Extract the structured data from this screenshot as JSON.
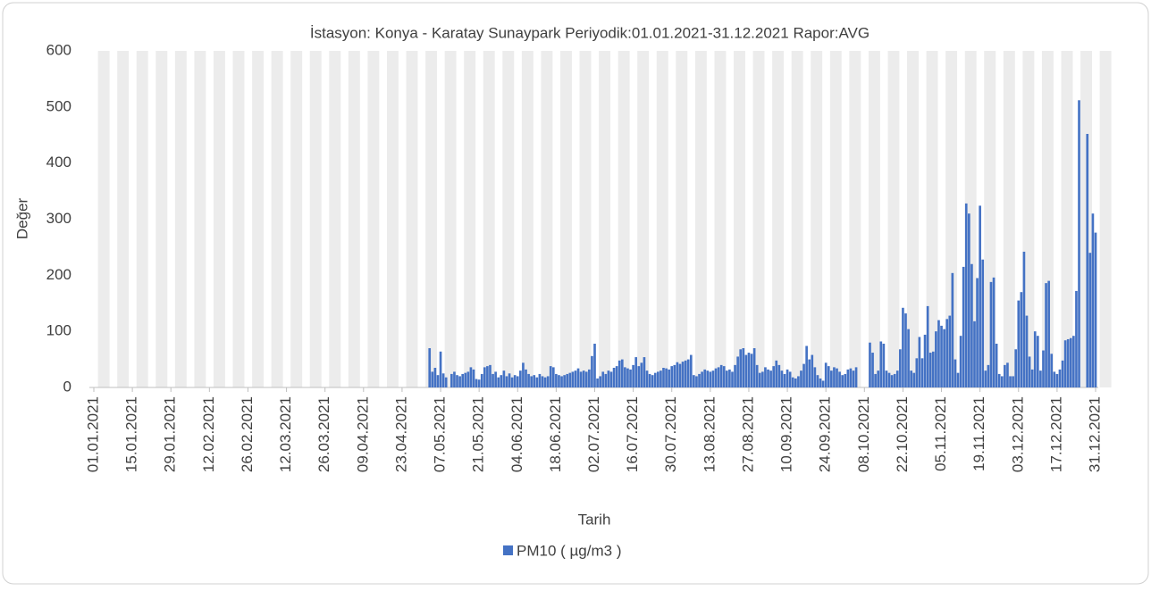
{
  "chart_data": {
    "type": "bar",
    "title": "İstasyon: Konya - Karatay Sunaypark  Periyodik:01.01.2021-31.12.2021 Rapor:AVG",
    "x_label": "Tarih",
    "y_label": "Değer",
    "series": [
      {
        "name": "PM10 ( µg/m3 )",
        "color": "#4472c4",
        "x": [
          "03.05.2021",
          "04.05.2021",
          "05.05.2021",
          "06.05.2021",
          "07.05.2021",
          "08.05.2021",
          "09.05.2021",
          "10.05.2021",
          "11.05.2021",
          "12.05.2021",
          "13.05.2021",
          "14.05.2021",
          "15.05.2021",
          "16.05.2021",
          "17.05.2021",
          "18.05.2021",
          "19.05.2021",
          "20.05.2021",
          "21.05.2021",
          "22.05.2021",
          "23.05.2021",
          "24.05.2021",
          "25.05.2021",
          "26.05.2021",
          "27.05.2021",
          "28.05.2021",
          "29.05.2021",
          "30.05.2021",
          "31.05.2021",
          "01.06.2021",
          "02.06.2021",
          "03.06.2021",
          "04.06.2021",
          "05.06.2021",
          "06.06.2021",
          "07.06.2021",
          "08.06.2021",
          "09.06.2021",
          "10.06.2021",
          "11.06.2021",
          "12.06.2021",
          "13.06.2021",
          "14.06.2021",
          "15.06.2021",
          "16.06.2021",
          "17.06.2021",
          "18.06.2021",
          "19.06.2021",
          "20.06.2021",
          "21.06.2021",
          "22.06.2021",
          "23.06.2021",
          "24.06.2021",
          "25.06.2021",
          "26.06.2021",
          "27.06.2021",
          "28.06.2021",
          "29.06.2021",
          "30.06.2021",
          "01.07.2021",
          "02.07.2021",
          "03.07.2021",
          "04.07.2021",
          "05.07.2021",
          "06.07.2021",
          "07.07.2021",
          "08.07.2021",
          "09.07.2021",
          "10.07.2021",
          "11.07.2021",
          "12.07.2021",
          "13.07.2021",
          "14.07.2021",
          "15.07.2021",
          "16.07.2021",
          "17.07.2021",
          "18.07.2021",
          "19.07.2021",
          "20.07.2021",
          "21.07.2021",
          "22.07.2021",
          "23.07.2021",
          "24.07.2021",
          "25.07.2021",
          "26.07.2021",
          "27.07.2021",
          "28.07.2021",
          "29.07.2021",
          "30.07.2021",
          "31.07.2021",
          "01.08.2021",
          "02.08.2021",
          "03.08.2021",
          "04.08.2021",
          "05.08.2021",
          "06.08.2021",
          "07.08.2021",
          "08.08.2021",
          "09.08.2021",
          "10.08.2021",
          "11.08.2021",
          "12.08.2021",
          "13.08.2021",
          "14.08.2021",
          "15.08.2021",
          "16.08.2021",
          "17.08.2021",
          "18.08.2021",
          "19.08.2021",
          "20.08.2021",
          "21.08.2021",
          "22.08.2021",
          "23.08.2021",
          "24.08.2021",
          "25.08.2021",
          "26.08.2021",
          "27.08.2021",
          "28.08.2021",
          "29.08.2021",
          "30.08.2021",
          "31.08.2021",
          "01.09.2021",
          "02.09.2021",
          "03.09.2021",
          "04.09.2021",
          "05.09.2021",
          "06.09.2021",
          "07.09.2021",
          "08.09.2021",
          "09.09.2021",
          "10.09.2021",
          "11.09.2021",
          "12.09.2021",
          "13.09.2021",
          "14.09.2021",
          "15.09.2021",
          "16.09.2021",
          "17.09.2021",
          "18.09.2021",
          "19.09.2021",
          "20.09.2021",
          "21.09.2021",
          "22.09.2021",
          "23.09.2021",
          "24.09.2021",
          "25.09.2021",
          "26.09.2021",
          "27.09.2021",
          "28.09.2021",
          "29.09.2021",
          "30.09.2021",
          "01.10.2021",
          "02.10.2021",
          "03.10.2021",
          "04.10.2021",
          "05.10.2021",
          "06.10.2021",
          "07.10.2021",
          "08.10.2021",
          "09.10.2021",
          "10.10.2021",
          "11.10.2021",
          "12.10.2021",
          "13.10.2021",
          "14.10.2021",
          "15.10.2021",
          "16.10.2021",
          "17.10.2021",
          "18.10.2021",
          "19.10.2021",
          "20.10.2021",
          "21.10.2021",
          "22.10.2021",
          "23.10.2021",
          "24.10.2021",
          "25.10.2021",
          "26.10.2021",
          "27.10.2021",
          "28.10.2021",
          "29.10.2021",
          "30.10.2021",
          "31.10.2021",
          "01.11.2021",
          "02.11.2021",
          "03.11.2021",
          "04.11.2021",
          "05.11.2021",
          "06.11.2021",
          "07.11.2021",
          "08.11.2021",
          "09.11.2021",
          "10.11.2021",
          "11.11.2021",
          "12.11.2021",
          "13.11.2021",
          "14.11.2021",
          "15.11.2021",
          "16.11.2021",
          "17.11.2021",
          "18.11.2021",
          "19.11.2021",
          "20.11.2021",
          "21.11.2021",
          "22.11.2021",
          "23.11.2021",
          "24.11.2021",
          "25.11.2021",
          "26.11.2021",
          "27.11.2021",
          "28.11.2021",
          "29.11.2021",
          "30.11.2021",
          "01.12.2021",
          "02.12.2021",
          "03.12.2021",
          "04.12.2021",
          "05.12.2021",
          "06.12.2021",
          "07.12.2021",
          "08.12.2021",
          "09.12.2021",
          "10.12.2021",
          "11.12.2021",
          "12.12.2021",
          "13.12.2021",
          "14.12.2021",
          "15.12.2021",
          "16.12.2021",
          "17.12.2021",
          "18.12.2021",
          "19.12.2021",
          "20.12.2021",
          "21.12.2021",
          "22.12.2021",
          "23.12.2021",
          "24.12.2021",
          "25.12.2021",
          "26.12.2021",
          "27.12.2021",
          "28.12.2021",
          "29.12.2021",
          "30.12.2021",
          "31.12.2021"
        ],
        "values": [
          70,
          28,
          35,
          22,
          64,
          25,
          18,
          null,
          24,
          28,
          22,
          20,
          24,
          26,
          28,
          36,
          32,
          15,
          14,
          24,
          36,
          38,
          40,
          24,
          28,
          18,
          22,
          30,
          20,
          25,
          18,
          22,
          20,
          30,
          44,
          32,
          24,
          20,
          22,
          18,
          24,
          20,
          18,
          20,
          38,
          36,
          24,
          22,
          20,
          22,
          24,
          26,
          28,
          30,
          34,
          28,
          30,
          28,
          32,
          56,
          78,
          16,
          20,
          28,
          24,
          30,
          28,
          35,
          38,
          48,
          50,
          36,
          34,
          32,
          40,
          54,
          38,
          44,
          54,
          30,
          24,
          22,
          26,
          28,
          30,
          35,
          34,
          32,
          38,
          40,
          45,
          42,
          46,
          48,
          50,
          58,
          22,
          20,
          24,
          28,
          32,
          30,
          28,
          30,
          34,
          36,
          40,
          38,
          30,
          32,
          28,
          40,
          55,
          68,
          70,
          58,
          62,
          60,
          70,
          40,
          26,
          28,
          36,
          32,
          30,
          38,
          48,
          40,
          30,
          24,
          32,
          28,
          18,
          16,
          20,
          30,
          42,
          74,
          50,
          58,
          36,
          22,
          16,
          12,
          44,
          38,
          30,
          36,
          34,
          28,
          22,
          24,
          32,
          34,
          30,
          36,
          null,
          null,
          null,
          null,
          80,
          62,
          24,
          30,
          82,
          78,
          30,
          26,
          22,
          24,
          30,
          68,
          142,
          132,
          104,
          30,
          26,
          52,
          90,
          52,
          94,
          145,
          62,
          64,
          100,
          120,
          110,
          104,
          122,
          128,
          204,
          50,
          26,
          92,
          215,
          328,
          310,
          220,
          118,
          195,
          324,
          228,
          30,
          40,
          188,
          196,
          78,
          24,
          20,
          40,
          44,
          20,
          20,
          68,
          155,
          170,
          242,
          128,
          55,
          32,
          100,
          92,
          30,
          66,
          186,
          190,
          60,
          28,
          24,
          32,
          48,
          84,
          86,
          88,
          92,
          172,
          512,
          null,
          null,
          452,
          240,
          310,
          276
        ]
      }
    ],
    "xlim": [
      "01.01.2021",
      "31.12.2021"
    ],
    "xticks": [
      "01.01.2021",
      "15.01.2021",
      "29.01.2021",
      "12.02.2021",
      "26.02.2021",
      "12.03.2021",
      "26.03.2021",
      "09.04.2021",
      "23.04.2021",
      "07.05.2021",
      "21.05.2021",
      "04.06.2021",
      "18.06.2021",
      "02.07.2021",
      "16.07.2021",
      "30.07.2021",
      "13.08.2021",
      "27.08.2021",
      "10.09.2021",
      "24.09.2021",
      "08.10.2021",
      "22.10.2021",
      "05.11.2021",
      "19.11.2021",
      "03.12.2021",
      "17.12.2021",
      "31.12.2021"
    ],
    "ylim": [
      0,
      600
    ],
    "yticks": [
      0,
      100,
      200,
      300,
      400,
      500,
      600
    ],
    "grid": true,
    "legend": "bottom"
  }
}
